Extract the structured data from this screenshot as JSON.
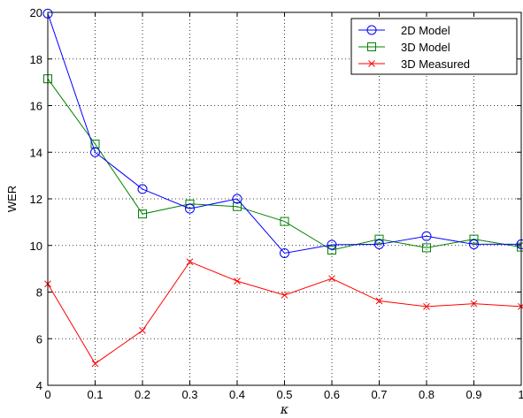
{
  "chart_data": {
    "type": "line",
    "title": "",
    "xlabel": "κ",
    "ylabel": "WER",
    "x": [
      0,
      0.1,
      0.2,
      0.3,
      0.4,
      0.5,
      0.6,
      0.7,
      0.8,
      0.9,
      1
    ],
    "xlim": [
      0,
      1
    ],
    "ylim": [
      4,
      20
    ],
    "xticks": [
      "0",
      "0.1",
      "0.2",
      "0.3",
      "0.4",
      "0.5",
      "0.6",
      "0.7",
      "0.8",
      "0.9",
      "1"
    ],
    "yticks": [
      "4",
      "6",
      "8",
      "10",
      "12",
      "14",
      "16",
      "18",
      "20"
    ],
    "grid": true,
    "grid_style": "dotted",
    "legend_position": "top-right",
    "series": [
      {
        "name": "2D Model",
        "color": "#0000ff",
        "marker": "circle",
        "values": [
          19.95,
          14.0,
          12.42,
          11.58,
          12.0,
          9.67,
          10.03,
          10.05,
          10.4,
          10.05,
          10.05
        ]
      },
      {
        "name": "3D Model",
        "color": "#008000",
        "marker": "square",
        "values": [
          17.15,
          14.35,
          11.35,
          11.78,
          11.67,
          11.03,
          9.8,
          10.27,
          9.9,
          10.27,
          9.93
        ]
      },
      {
        "name": "3D Measured",
        "color": "#ff0000",
        "marker": "x",
        "values": [
          8.35,
          4.93,
          6.35,
          9.3,
          8.47,
          7.87,
          8.58,
          7.62,
          7.38,
          7.5,
          7.38
        ]
      }
    ]
  }
}
